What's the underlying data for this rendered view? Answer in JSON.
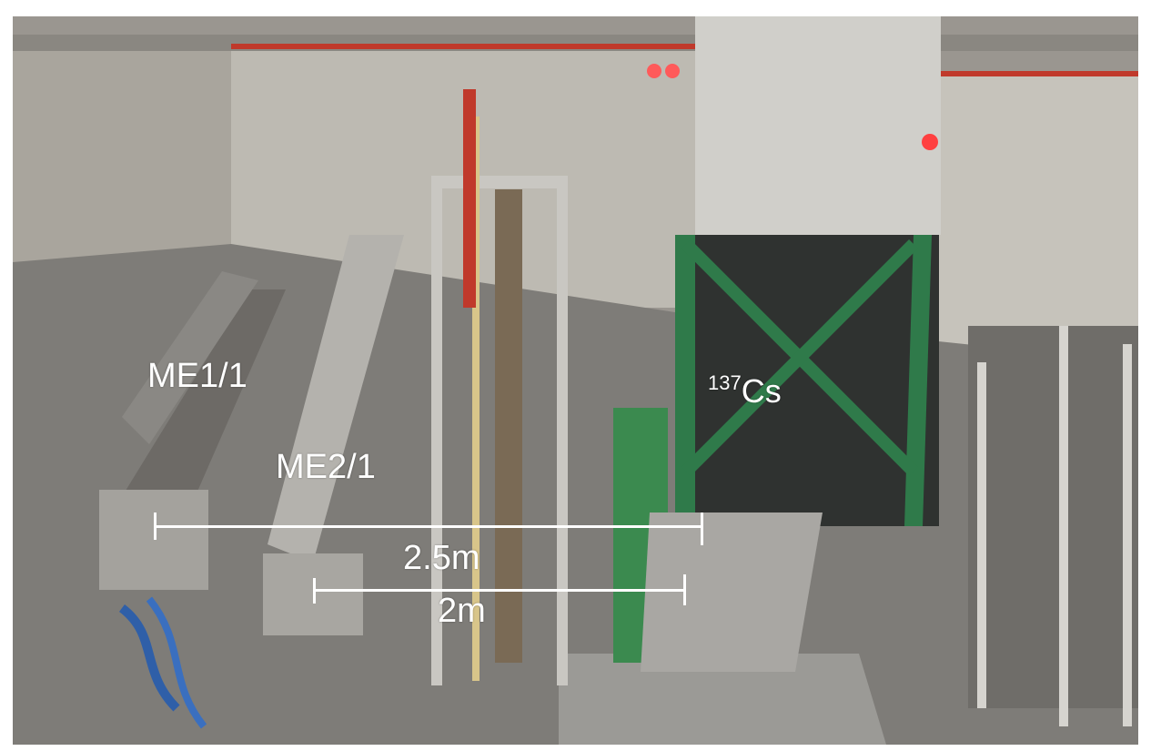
{
  "figure": {
    "labels": {
      "me11": "ME1/1",
      "me21": "ME2/1",
      "source_mass": "137",
      "source_element": "Cs"
    },
    "scale_bars": [
      {
        "label": "2.5m"
      },
      {
        "label": "2m"
      }
    ]
  }
}
